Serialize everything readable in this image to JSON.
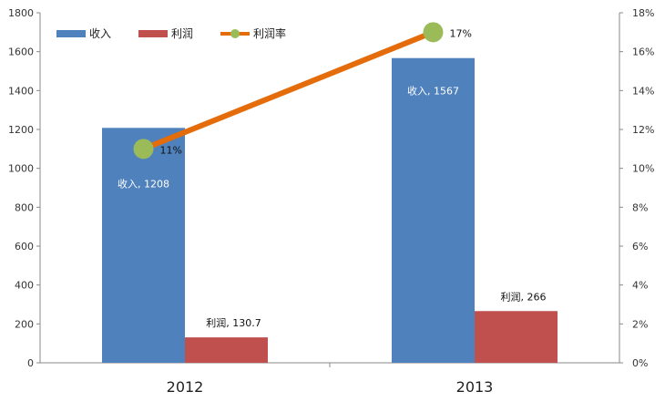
{
  "chart_data": {
    "type": "bar",
    "categories": [
      "2012",
      "2013"
    ],
    "series": [
      {
        "name": "收入",
        "type": "bar",
        "axis": "left",
        "color": "#4F81BD",
        "values": [
          1208,
          1567
        ],
        "labels": [
          "收入, 1208",
          "收入, 1567"
        ]
      },
      {
        "name": "利润",
        "type": "bar",
        "axis": "left",
        "color": "#C0504D",
        "values": [
          130.7,
          266
        ],
        "labels": [
          "利润, 130.7",
          "利润, 266"
        ]
      },
      {
        "name": "利润率",
        "type": "line",
        "axis": "right",
        "color": "#E46C0A",
        "marker_color": "#9BBB59",
        "values": [
          11,
          17
        ],
        "labels": [
          "11%",
          "17%"
        ]
      }
    ],
    "ylim_left": [
      0,
      1800
    ],
    "yticks_left": [
      "0",
      "200",
      "400",
      "600",
      "800",
      "1000",
      "1200",
      "1400",
      "1600",
      "1800"
    ],
    "ylim_right": [
      0,
      18
    ],
    "yticks_right": [
      "0%",
      "2%",
      "4%",
      "6%",
      "8%",
      "10%",
      "12%",
      "14%",
      "16%",
      "18%"
    ],
    "grid": false,
    "legend_position": "top-left",
    "title": "",
    "xlabel": "",
    "ylabel": ""
  }
}
